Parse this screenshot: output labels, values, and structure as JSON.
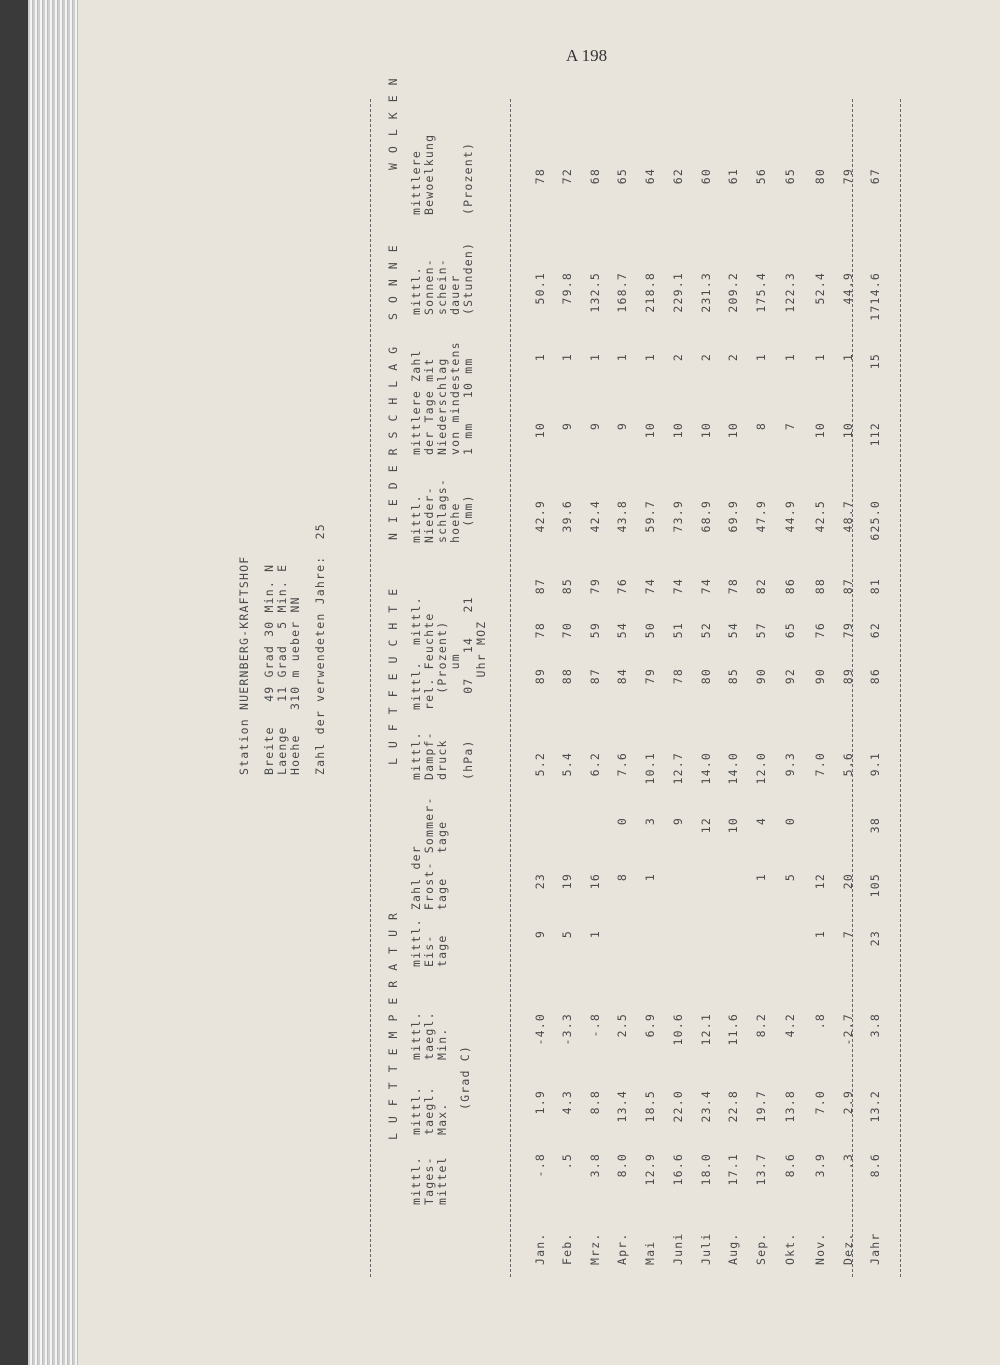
{
  "page_number": "A 198",
  "station": "Station NUERNBERG-KRAFTSHOF",
  "coords": [
    "Breite   49 Grad 30 Min. N",
    "Laenge   11 Grad  5 Min. E",
    "Hoehe   310 m ueber NN"
  ],
  "years_label": "Zahl der verwendeten Jahre:  25",
  "sections": [
    "LUFTTEMPERATUR",
    "LUFTFEUCHTE",
    "NIEDERSCHLAG",
    "SONNE",
    "WOLKEN"
  ],
  "headers": [
    [
      "mittl.",
      "Tages-",
      "mittel"
    ],
    [
      "mittl.",
      "taegl.",
      "Max."
    ],
    [
      "mittl.",
      "taegl.",
      "Min."
    ],
    [
      "mittl. Zahl der",
      "Eis-   Frost- Sommer-",
      "tage   tage   tage"
    ],
    [
      "mittl.",
      "Dampf-",
      "druck",
      "",
      "(hPa)"
    ],
    [
      "mittl.  mittl.",
      "rel. Feuchte",
      "  (Prozent)",
      "     um",
      "  07   14   21",
      "    Uhr MOZ"
    ],
    [
      "mittl.",
      "Nieder-",
      "schlags-",
      "hoehe",
      "  (mm)"
    ],
    [
      "mittlere Zahl",
      "der Tage mit",
      "Niederschlag",
      "von mindestens",
      "1 mm   10 mm"
    ],
    [
      "mittl.",
      "Sonnen-",
      "schein-",
      "dauer",
      "(Stunden)"
    ],
    [
      "mittlere",
      "Bewoelkung",
      "",
      "",
      "(Prozent)"
    ]
  ],
  "temp_unit": "(Grad C)",
  "months": [
    "Jan.",
    "Feb.",
    "Mrz.",
    "Apr.",
    "Mai",
    "Juni",
    "Juli",
    "Aug.",
    "Sep.",
    "Okt.",
    "Nov.",
    "Dez.",
    "Jahr"
  ],
  "rows": [
    [
      "-.8",
      "1.9",
      "-4.0",
      "9",
      "23",
      "",
      "5.2",
      "89",
      "78",
      "87",
      "42.9",
      "10",
      "1",
      "50.1",
      "78"
    ],
    [
      ".5",
      "4.3",
      "-3.3",
      "5",
      "19",
      "",
      "5.4",
      "88",
      "70",
      "85",
      "39.6",
      "9",
      "1",
      "79.8",
      "72"
    ],
    [
      "3.8",
      "8.8",
      "-.8",
      "1",
      "16",
      "",
      "6.2",
      "87",
      "59",
      "79",
      "42.4",
      "9",
      "1",
      "132.5",
      "68"
    ],
    [
      "8.0",
      "13.4",
      "2.5",
      "",
      "8",
      "0",
      "7.6",
      "84",
      "54",
      "76",
      "43.8",
      "9",
      "1",
      "168.7",
      "65"
    ],
    [
      "12.9",
      "18.5",
      "6.9",
      "",
      "1",
      "3",
      "10.1",
      "79",
      "50",
      "74",
      "59.7",
      "10",
      "1",
      "218.8",
      "64"
    ],
    [
      "16.6",
      "22.0",
      "10.6",
      "",
      "",
      "9",
      "12.7",
      "78",
      "51",
      "74",
      "73.9",
      "10",
      "2",
      "229.1",
      "62"
    ],
    [
      "18.0",
      "23.4",
      "12.1",
      "",
      "",
      "12",
      "14.0",
      "80",
      "52",
      "74",
      "68.9",
      "10",
      "2",
      "231.3",
      "60"
    ],
    [
      "17.1",
      "22.8",
      "11.6",
      "",
      "",
      "10",
      "14.0",
      "85",
      "54",
      "78",
      "69.9",
      "10",
      "2",
      "209.2",
      "61"
    ],
    [
      "13.7",
      "19.7",
      "8.2",
      "",
      "1",
      "4",
      "12.0",
      "90",
      "57",
      "82",
      "47.9",
      "8",
      "1",
      "175.4",
      "56"
    ],
    [
      "8.6",
      "13.8",
      "4.2",
      "",
      "5",
      "0",
      "9.3",
      "92",
      "65",
      "86",
      "44.9",
      "7",
      "1",
      "122.3",
      "65"
    ],
    [
      "3.9",
      "7.0",
      ".8",
      "1",
      "12",
      "",
      "7.0",
      "90",
      "76",
      "88",
      "42.5",
      "10",
      "1",
      "52.4",
      "80"
    ],
    [
      ".3",
      "2.9",
      "-2.7",
      "7",
      "20",
      "",
      "5.6",
      "89",
      "79",
      "87",
      "48.7",
      "10",
      "1",
      "44.9",
      "79"
    ],
    [
      "8.6",
      "13.2",
      "3.8",
      "23",
      "105",
      "38",
      "9.1",
      "86",
      "62",
      "81",
      "625.0",
      "112",
      "15",
      "1714.6",
      "67"
    ]
  ]
}
